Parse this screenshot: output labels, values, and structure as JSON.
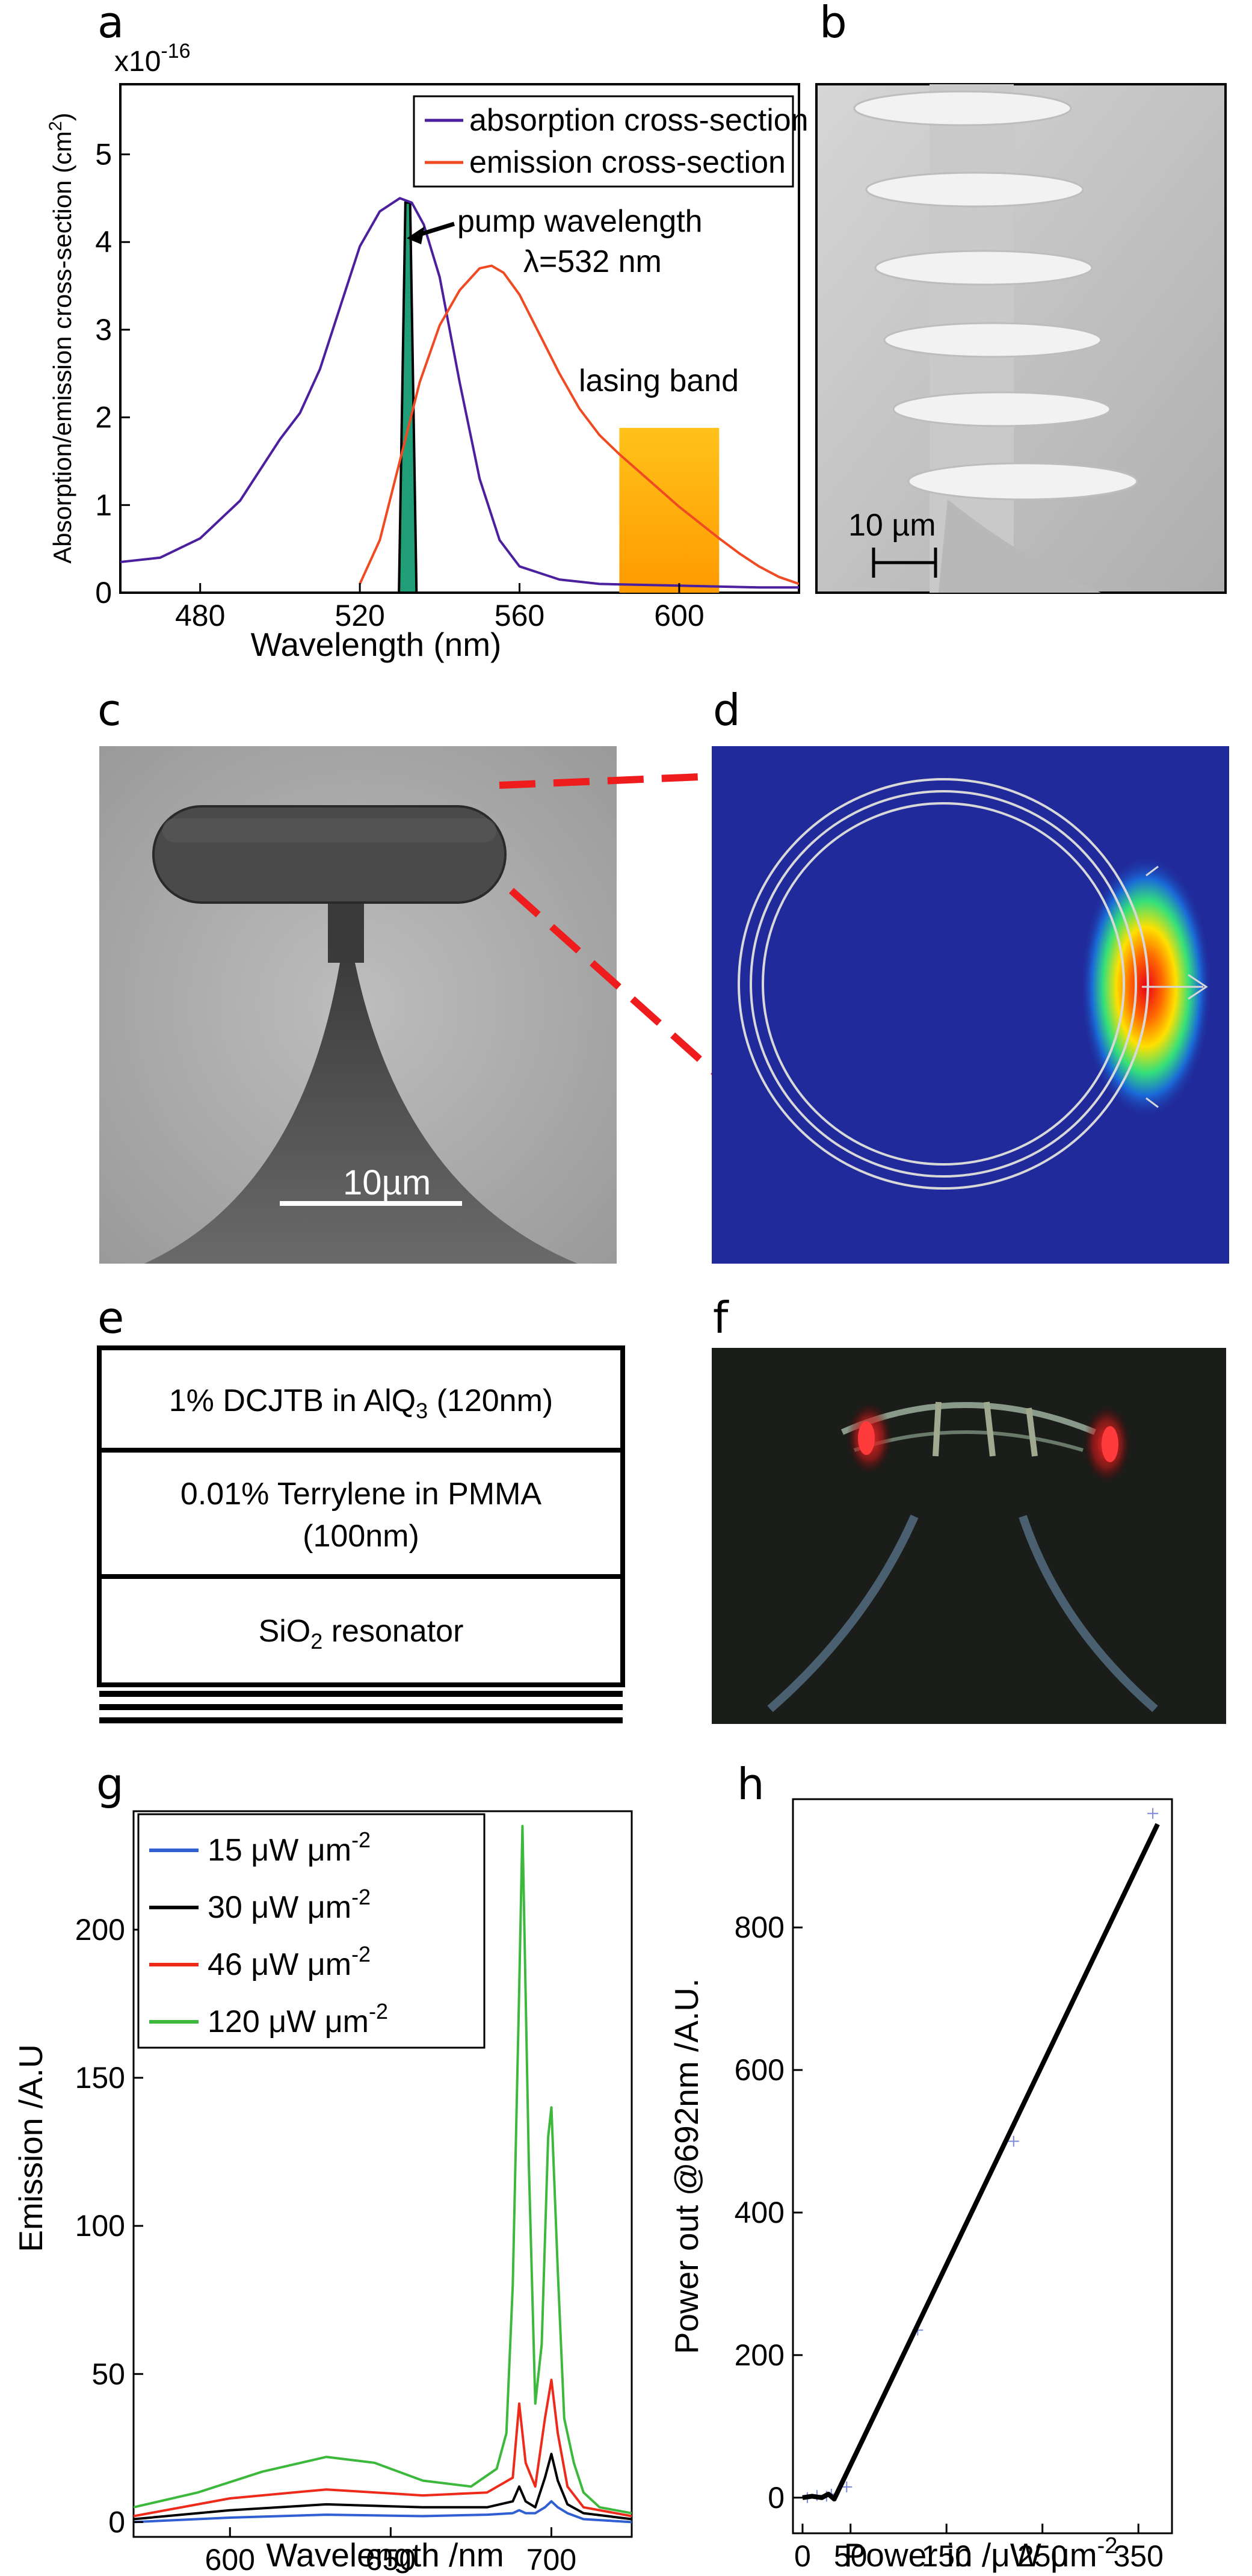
{
  "panels": {
    "a": "a",
    "b": "b",
    "c": "c",
    "d": "d",
    "e": "e",
    "f": "f",
    "g": "g",
    "h": "h"
  },
  "panel_b": {
    "scale_label": "10 µm"
  },
  "panel_c": {
    "scale_label": "10µm"
  },
  "panel_e": {
    "layer1": "1% DCJTB in AlQ",
    "layer1_sub": "3",
    "layer1_tail": " (120nm)",
    "layer2_line1": "0.01% Terrylene in PMMA",
    "layer2_line2": "(100nm)",
    "layer3": "SiO",
    "layer3_sub": "2",
    "layer3_tail": " resonator"
  },
  "colors": {
    "absorption": "#4b1f9e",
    "emission": "#f04a23",
    "pump_fill": "#1f9e78",
    "lasing_band": "#ffb300",
    "g_15": "#2f5fd0",
    "g_30": "#000000",
    "g_46": "#ee2a1a",
    "g_120": "#3cb83c",
    "h_line": "#000000",
    "h_points": "#7a8ad8"
  },
  "chart_data": [
    {
      "id": "a",
      "type": "line",
      "xlabel": "Wavelength (nm)",
      "ylabel": "Absorption/emission cross-section (cm",
      "ylabel_sup": "2",
      "ylabel_tail": ")",
      "y_multiplier": "x10",
      "y_multiplier_exp": "-16",
      "xlim": [
        460,
        630
      ],
      "ylim": [
        0,
        5.8
      ],
      "xticks": [
        480,
        520,
        560,
        600
      ],
      "yticks": [
        0,
        1,
        2,
        3,
        4,
        5
      ],
      "legend_position": "top-right",
      "annotations": {
        "pump_line1": "pump wavelength",
        "pump_line2": "λ=532 nm",
        "lasing": "lasing band"
      },
      "pump_wavelength": 532,
      "lasing_band_range": [
        585,
        610
      ],
      "lasing_band_height": 1.88,
      "series": [
        {
          "name": "absorption cross-section",
          "x": [
            460,
            470,
            480,
            490,
            495,
            500,
            505,
            510,
            515,
            520,
            525,
            530,
            533,
            536,
            540,
            545,
            550,
            555,
            560,
            570,
            580,
            600,
            620,
            630
          ],
          "y": [
            0.35,
            0.4,
            0.62,
            1.05,
            1.4,
            1.75,
            2.05,
            2.55,
            3.25,
            3.95,
            4.35,
            4.5,
            4.45,
            4.2,
            3.6,
            2.4,
            1.3,
            0.6,
            0.3,
            0.15,
            0.1,
            0.08,
            0.06,
            0.06
          ]
        },
        {
          "name": "emission cross-section",
          "x": [
            520,
            525,
            530,
            535,
            540,
            545,
            550,
            553,
            556,
            560,
            565,
            570,
            575,
            580,
            585,
            590,
            595,
            600,
            605,
            610,
            615,
            620,
            625,
            630
          ],
          "y": [
            0.1,
            0.6,
            1.5,
            2.4,
            3.05,
            3.45,
            3.7,
            3.73,
            3.65,
            3.4,
            2.95,
            2.5,
            2.1,
            1.8,
            1.58,
            1.38,
            1.18,
            0.98,
            0.8,
            0.62,
            0.45,
            0.3,
            0.18,
            0.1
          ]
        }
      ]
    },
    {
      "id": "g",
      "type": "line",
      "xlabel": "Wavelength /nm",
      "ylabel": "Emission /A.U",
      "xlim": [
        570,
        725
      ],
      "ylim": [
        -5,
        240
      ],
      "xticks": [
        600,
        650,
        700
      ],
      "yticks": [
        0,
        50,
        100,
        150,
        200
      ],
      "legend_position": "top-left",
      "series": [
        {
          "name": "15 μW μm",
          "name_sup": "-2",
          "x": [
            570,
            600,
            630,
            660,
            680,
            688,
            690,
            692,
            695,
            698,
            700,
            702,
            705,
            710,
            725
          ],
          "y": [
            0,
            1.5,
            2.5,
            2,
            2.5,
            3,
            4,
            3,
            3,
            5,
            7,
            5,
            3,
            1,
            0
          ]
        },
        {
          "name": "30 μW μm",
          "name_sup": "-2",
          "x": [
            570,
            600,
            630,
            660,
            680,
            688,
            690,
            692,
            695,
            698,
            700,
            702,
            705,
            710,
            725
          ],
          "y": [
            1,
            4,
            6,
            5,
            5,
            7,
            12,
            7,
            5,
            15,
            23,
            14,
            6,
            3,
            1
          ]
        },
        {
          "name": "46 μW μm",
          "name_sup": "-2",
          "x": [
            570,
            600,
            630,
            660,
            680,
            688,
            690,
            692,
            695,
            698,
            700,
            702,
            705,
            710,
            725
          ],
          "y": [
            2,
            8,
            11,
            9,
            10,
            15,
            40,
            20,
            12,
            35,
            48,
            30,
            12,
            5,
            2
          ]
        },
        {
          "name": "120 μW μm",
          "name_sup": "-2",
          "x": [
            570,
            590,
            610,
            630,
            645,
            660,
            675,
            683,
            686,
            688,
            690,
            691,
            693,
            695,
            697,
            699,
            700,
            702,
            704,
            707,
            710,
            715,
            725
          ],
          "y": [
            5,
            10,
            17,
            22,
            20,
            14,
            12,
            18,
            30,
            80,
            180,
            235,
            120,
            40,
            60,
            130,
            140,
            85,
            35,
            20,
            10,
            5,
            3
          ]
        }
      ]
    },
    {
      "id": "h",
      "type": "line",
      "xlabel": "Power in /μW μm",
      "xlabel_sup": "-2",
      "ylabel": "Power out @692nm /A.U.",
      "xlim": [
        -10,
        385
      ],
      "ylim": [
        -50,
        980
      ],
      "xticks": [
        0,
        50,
        150,
        250,
        350
      ],
      "xticklabels": [
        "0",
        "50",
        "150",
        "250",
        "350"
      ],
      "yticks": [
        0,
        200,
        400,
        600,
        800
      ],
      "series": [
        {
          "name": "",
          "x": [
            0,
            10,
            20,
            27,
            33,
            370
          ],
          "y": [
            0,
            2,
            0,
            5,
            -2,
            945
          ]
        }
      ],
      "points": {
        "x": [
          5,
          15,
          25,
          30,
          46,
          120,
          220,
          365
        ],
        "y": [
          0,
          3,
          2,
          5,
          15,
          235,
          500,
          960
        ]
      }
    }
  ]
}
